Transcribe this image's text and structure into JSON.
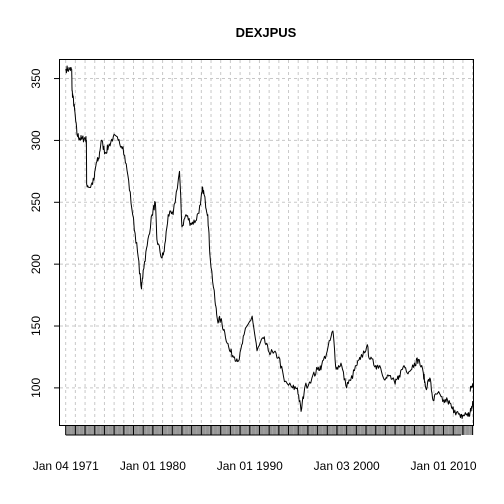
{
  "chart_data": {
    "type": "line",
    "title": "DEXJPUS",
    "xlabel": "",
    "ylabel": "",
    "ylim": [
      70,
      365
    ],
    "xlim": [
      "1970-06-01",
      "2013-01-15"
    ],
    "y_ticks": [
      100,
      150,
      200,
      250,
      300,
      350
    ],
    "x_tick_labels": [
      {
        "date": "1971-01-04",
        "label": "Jan 04 1971"
      },
      {
        "date": "1980-01-01",
        "label": "Jan 01 1980"
      },
      {
        "date": "1990-01-01",
        "label": "Jan 01 1990"
      },
      {
        "date": "2000-01-03",
        "label": "Jan 03 2000"
      },
      {
        "date": "2010-01-01",
        "label": "Jan 01 2010"
      }
    ],
    "grid": true,
    "series": [
      {
        "values": [
          [
            "1971-01-04",
            357.7
          ],
          [
            "1971-06-01",
            357.5
          ],
          [
            "1971-08-15",
            357.4
          ],
          [
            "1971-08-30",
            340.0
          ],
          [
            "1971-10-01",
            335.0
          ],
          [
            "1971-12-01",
            325.0
          ],
          [
            "1972-03-01",
            305.0
          ],
          [
            "1972-06-01",
            302.0
          ],
          [
            "1972-09-01",
            301.0
          ],
          [
            "1973-01-01",
            302.0
          ],
          [
            "1973-02-20",
            300.0
          ],
          [
            "1973-03-01",
            265.0
          ],
          [
            "1973-07-01",
            262.0
          ],
          [
            "1973-12-01",
            268.0
          ],
          [
            "1974-03-01",
            282.0
          ],
          [
            "1974-06-01",
            285.0
          ],
          [
            "1974-09-01",
            300.0
          ],
          [
            "1975-02-01",
            290.0
          ],
          [
            "1975-06-01",
            295.0
          ],
          [
            "1975-12-01",
            303.0
          ],
          [
            "1976-06-01",
            300.0
          ],
          [
            "1976-12-01",
            295.0
          ],
          [
            "1977-06-01",
            272.0
          ],
          [
            "1977-12-01",
            240.0
          ],
          [
            "1978-06-01",
            210.0
          ],
          [
            "1978-10-30",
            180.0
          ],
          [
            "1979-01-01",
            195.0
          ],
          [
            "1979-06-01",
            215.0
          ],
          [
            "1979-12-01",
            240.0
          ],
          [
            "1980-04-01",
            250.0
          ],
          [
            "1980-06-01",
            220.0
          ],
          [
            "1980-12-01",
            205.0
          ],
          [
            "1981-03-01",
            210.0
          ],
          [
            "1981-08-01",
            240.0
          ],
          [
            "1982-02-01",
            240.0
          ],
          [
            "1982-10-01",
            275.0
          ],
          [
            "1983-01-01",
            230.0
          ],
          [
            "1983-06-01",
            240.0
          ],
          [
            "1983-12-01",
            233.0
          ],
          [
            "1984-06-01",
            235.0
          ],
          [
            "1984-12-01",
            248.0
          ],
          [
            "1985-02-20",
            262.0
          ],
          [
            "1985-06-01",
            250.0
          ],
          [
            "1985-09-01",
            240.0
          ],
          [
            "1985-12-01",
            205.0
          ],
          [
            "1986-06-01",
            170.0
          ],
          [
            "1986-09-01",
            155.0
          ],
          [
            "1987-01-01",
            155.0
          ],
          [
            "1987-06-01",
            145.0
          ],
          [
            "1987-12-01",
            130.0
          ],
          [
            "1988-06-01",
            125.0
          ],
          [
            "1988-12-01",
            123.0
          ],
          [
            "1989-06-01",
            143.0
          ],
          [
            "1990-04-01",
            158.0
          ],
          [
            "1990-10-01",
            130.0
          ],
          [
            "1991-06-01",
            140.0
          ],
          [
            "1991-12-01",
            130.0
          ],
          [
            "1992-06-01",
            128.0
          ],
          [
            "1993-01-01",
            125.0
          ],
          [
            "1993-08-01",
            105.0
          ],
          [
            "1994-06-01",
            100.0
          ],
          [
            "1994-12-01",
            100.0
          ],
          [
            "1995-04-19",
            81.0
          ],
          [
            "1995-09-01",
            100.0
          ],
          [
            "1996-06-01",
            108.0
          ],
          [
            "1997-01-01",
            115.0
          ],
          [
            "1997-06-01",
            118.0
          ],
          [
            "1998-01-01",
            130.0
          ],
          [
            "1998-08-01",
            146.0
          ],
          [
            "1998-12-01",
            115.0
          ],
          [
            "1999-06-01",
            120.0
          ],
          [
            "1999-12-01",
            102.0
          ],
          [
            "2000-06-01",
            106.0
          ],
          [
            "2001-01-01",
            118.0
          ],
          [
            "2001-06-01",
            123.0
          ],
          [
            "2002-02-01",
            134.0
          ],
          [
            "2002-06-01",
            123.0
          ],
          [
            "2003-01-01",
            118.0
          ],
          [
            "2003-06-01",
            118.0
          ],
          [
            "2004-01-01",
            107.0
          ],
          [
            "2004-06-01",
            110.0
          ],
          [
            "2005-01-01",
            103.0
          ],
          [
            "2005-06-01",
            110.0
          ],
          [
            "2005-12-01",
            118.0
          ],
          [
            "2006-06-01",
            113.0
          ],
          [
            "2007-01-01",
            120.0
          ],
          [
            "2007-06-01",
            123.0
          ],
          [
            "2007-12-01",
            112.0
          ],
          [
            "2008-03-01",
            100.0
          ],
          [
            "2008-08-01",
            108.0
          ],
          [
            "2008-12-01",
            90.0
          ],
          [
            "2009-06-01",
            96.0
          ],
          [
            "2009-12-01",
            89.0
          ],
          [
            "2010-06-01",
            90.0
          ],
          [
            "2010-12-01",
            83.0
          ],
          [
            "2011-03-01",
            82.0
          ],
          [
            "2011-10-01",
            76.0
          ],
          [
            "2012-02-01",
            78.0
          ],
          [
            "2012-06-01",
            79.0
          ],
          [
            "2012-09-01",
            78.0
          ],
          [
            "2012-11-01",
            82.0
          ],
          [
            "2012-12-01",
            85.0
          ],
          [
            "2013-01-10",
            89.0
          ]
        ]
      },
      {
        "values": [
          [
            "2012-10-01",
            97.0
          ],
          [
            "2012-11-01",
            101.0
          ],
          [
            "2012-12-01",
            100.0
          ],
          [
            "2013-01-01",
            103.0
          ],
          [
            "2013-01-10",
            101.0
          ],
          [
            "2013-01-14",
            104.0
          ]
        ]
      }
    ]
  }
}
